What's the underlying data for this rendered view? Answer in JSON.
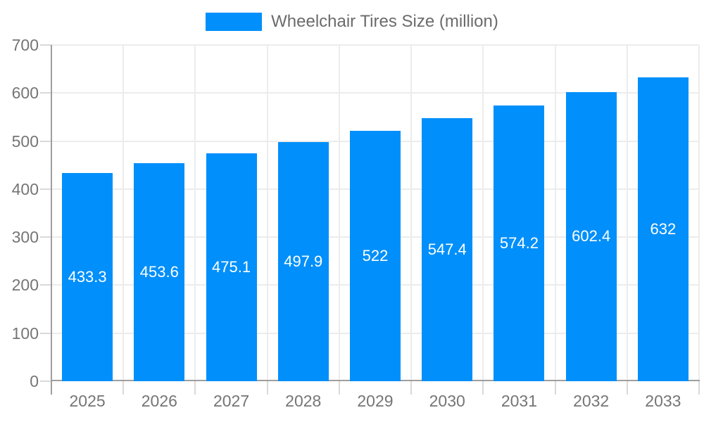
{
  "chart_data": {
    "type": "bar",
    "title": "",
    "series": [
      {
        "name": "Wheelchair Tires Size (million)",
        "values": [
          433.3,
          453.6,
          475.1,
          497.9,
          522,
          547.4,
          574.2,
          602.4,
          632
        ],
        "value_labels": [
          "433.3",
          "453.6",
          "475.1",
          "497.9",
          "522",
          "547.4",
          "574.2",
          "602.4",
          "632"
        ]
      }
    ],
    "categories": [
      "2025",
      "2026",
      "2027",
      "2028",
      "2029",
      "2030",
      "2031",
      "2032",
      "2033"
    ],
    "xlabel": "",
    "ylabel": "",
    "ylim": [
      0,
      700
    ],
    "yticks": [
      0,
      100,
      200,
      300,
      400,
      500,
      600,
      700
    ],
    "grid": true,
    "legend_position": "top-center",
    "colors": {
      "bar": "#008FFB",
      "bar_value_text": "#ffffff",
      "axis_label_text": "#757575",
      "legend_text": "#6b6b6b",
      "gridline": "#ececec",
      "tick": "#d9d9d9",
      "axis_line": "#9e9e9e",
      "background": "#ffffff"
    }
  }
}
